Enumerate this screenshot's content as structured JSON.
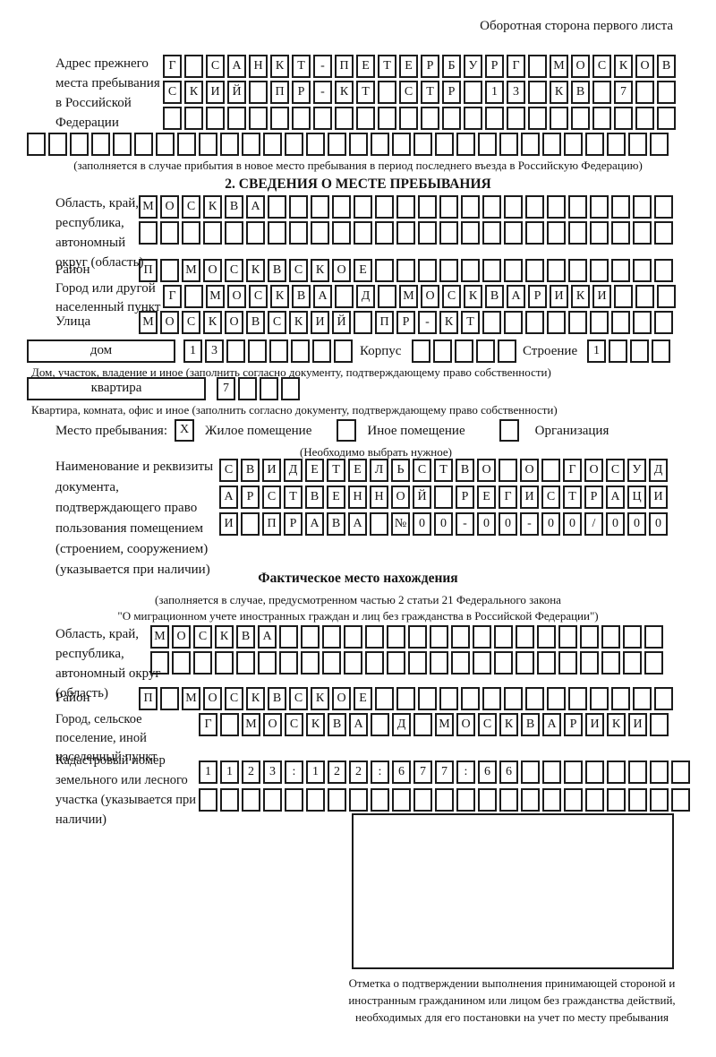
{
  "page": {
    "header_note": "Оборотная сторона первого листа"
  },
  "prev_address": {
    "label": "Адрес прежнего места пребывания в Российской Федерации",
    "rows": [
      {
        "value": "Г САНКТ-ПЕТЕРБУРГ МОСКОВ",
        "count": 24
      },
      {
        "value": "СКИЙ ПР-КТ СТР 13 КВ 7",
        "count": 24
      },
      {
        "value": "",
        "count": 24
      },
      {
        "value": "",
        "count": 30
      }
    ],
    "note": "(заполняется в случае прибытия в новое место пребывания в период последнего въезда в Российскую Федерацию)"
  },
  "section2": {
    "title": "2. СВЕДЕНИЯ О МЕСТЕ ПРЕБЫВАНИЯ",
    "region": {
      "label": "Область, край, республика, автономный округ (область)",
      "rows": [
        {
          "value": "МОСКВА",
          "count": 25
        },
        {
          "value": "",
          "count": 25
        }
      ]
    },
    "district": {
      "label": "Район",
      "row": {
        "value": "П МОСКВСКОЕ",
        "count": 25
      }
    },
    "city": {
      "label": "Город или другой населенный пункт",
      "row": {
        "value": "Г МОСКВА Д МОСКВАРИКИ",
        "count": 24
      }
    },
    "street": {
      "label": "Улица",
      "row": {
        "value": "МОСКОВСКИЙ ПР-КТ",
        "count": 25
      }
    },
    "house": {
      "type_label": "дом",
      "row": {
        "value": "13",
        "count": 8
      },
      "korpus_label": "Корпус",
      "korpus_row": {
        "value": "",
        "count": 5
      },
      "stroenie_label": "Строение",
      "stroenie_row": {
        "value": "1",
        "count": 4
      }
    },
    "house_note": "Дом, участок, владение и иное (заполнить согласно документу, подтверждающему право собственности)",
    "apartment": {
      "type_label": "квартира",
      "row": {
        "value": "7",
        "count": 4
      }
    },
    "apartment_note": "Квартира, комната, офис и иное (заполнить согласно документу, подтверждающему право собственности)",
    "stay_type": {
      "label": "Место пребывания:",
      "options": [
        {
          "label": "Жилое помещение",
          "checked": true
        },
        {
          "label": "Иное помещение",
          "checked": false
        },
        {
          "label": "Организация",
          "checked": false
        }
      ],
      "note": "(Необходимо выбрать нужное)"
    },
    "document": {
      "label": "Наименование и реквизиты документа, подтверждающего право пользования помещением (строением, сооружением) (указывается при наличии)",
      "rows": [
        {
          "value": "СВИДЕТЕЛЬСТВО О ГОСУД",
          "count": 21
        },
        {
          "value": "АРСТВЕННОЙ РЕГИСТРАЦИ",
          "count": 21
        },
        {
          "value": "И ПРАВА №00-00-00/000",
          "count": 21
        }
      ]
    }
  },
  "actual_location": {
    "title": "Фактическое место нахождения",
    "note_line1": "(заполняется в случае, предусмотренном частью 2 статьи 21 Федерального закона",
    "note_line2": "\"О миграционном учете иностранных граждан и лиц без гражданства в Российской Федерации\")",
    "region": {
      "label": "Область, край, республика, автономный округ (область)",
      "rows": [
        {
          "value": "МОСКВА",
          "count": 24
        },
        {
          "value": "",
          "count": 24
        }
      ]
    },
    "district": {
      "label": "Район",
      "row": {
        "value": "П МОСКВСКОЕ",
        "count": 25
      }
    },
    "city": {
      "label": "Город, сельское поселение, иной населенный пункт",
      "row": {
        "value": "Г МОСКВА Д МОСКВАРИКИ",
        "count": 22
      }
    },
    "cadastral": {
      "label": "Кадастровый номер земельного или лесного участка (указывается при наличии)",
      "rows": [
        {
          "value": "1123:122:677:66",
          "count": 23
        },
        {
          "value": "",
          "count": 23
        }
      ]
    },
    "stamp_note": "Отметка о подтверждении выполнения принимающей стороной и иностранным гражданином или лицом без гражданства действий, необходимых для его постановки на учет по месту пребывания"
  }
}
